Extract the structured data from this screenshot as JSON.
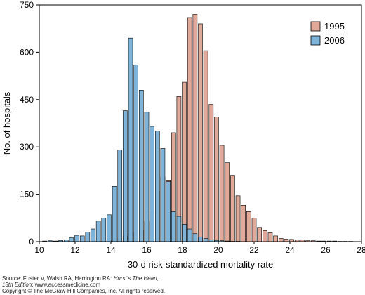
{
  "chart_data": {
    "type": "bar",
    "title": "",
    "xlabel": "30-d risk-standardized mortality rate",
    "ylabel": "No. of hospitals",
    "xlim": [
      10,
      28
    ],
    "ylim": [
      0,
      750
    ],
    "x_ticks": [
      10,
      12,
      14,
      16,
      18,
      20,
      22,
      24,
      26,
      28
    ],
    "y_ticks": [
      0,
      150,
      300,
      450,
      600,
      750
    ],
    "grid": false,
    "legend_position": "top-right",
    "x": [
      10.6,
      10.9,
      11.2,
      11.5,
      11.8,
      12.1,
      12.4,
      12.7,
      13.0,
      13.3,
      13.6,
      13.9,
      14.2,
      14.5,
      14.8,
      15.1,
      15.4,
      15.7,
      16.0,
      16.3,
      16.6,
      16.9,
      17.2,
      17.5,
      17.8,
      18.1,
      18.4,
      18.7,
      19.0,
      19.3,
      19.6,
      19.9,
      20.2,
      20.5,
      20.8,
      21.1,
      21.4,
      21.7,
      22.0,
      22.3,
      22.6,
      22.9,
      23.2,
      23.5,
      23.8,
      24.1,
      24.4,
      24.7,
      25.0,
      25.3,
      25.6,
      25.9,
      26.2,
      26.5,
      26.8,
      27.1
    ],
    "series": [
      {
        "name": "1995",
        "color": "#e0a99a",
        "values": [
          1,
          1,
          0,
          0,
          0,
          0,
          0,
          1,
          2,
          3,
          5,
          8,
          12,
          18,
          26,
          30,
          35,
          65,
          95,
          160,
          205,
          195,
          345,
          460,
          505,
          710,
          720,
          690,
          605,
          435,
          395,
          305,
          250,
          210,
          145,
          115,
          95,
          75,
          45,
          35,
          28,
          18,
          10,
          8,
          7,
          5,
          5,
          3,
          3,
          2,
          2,
          2,
          2,
          1,
          1,
          1
        ]
      },
      {
        "name": "2006",
        "color": "#7fb3d8",
        "values": [
          2,
          3,
          2,
          4,
          6,
          12,
          20,
          18,
          30,
          40,
          65,
          75,
          85,
          175,
          290,
          415,
          645,
          560,
          480,
          410,
          365,
          350,
          295,
          190,
          95,
          80,
          55,
          40,
          25,
          15,
          10,
          6,
          4,
          3,
          2,
          1,
          1,
          0,
          0,
          0,
          0,
          0,
          0,
          0,
          0,
          0,
          0,
          0,
          0,
          0,
          0,
          0,
          0,
          0,
          0,
          0
        ]
      }
    ]
  },
  "footer": {
    "source_prefix": "Source: Fuster V, Walsh RA, Harrington RA: ",
    "source_title": "Hurst's The Heart,",
    "source_edition": "13th Edition",
    "source_suffix": ": www.accessmedicine.com",
    "copyright": "Copyright © The McGraw-Hill Companies, Inc. All rights reserved."
  }
}
